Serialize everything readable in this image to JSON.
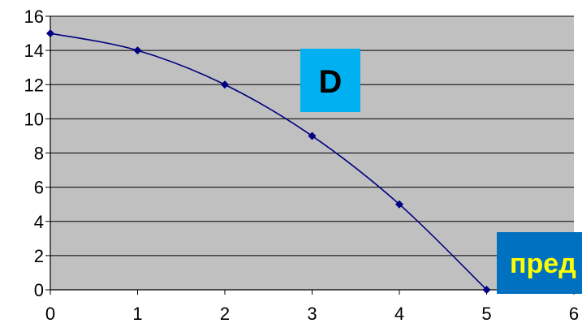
{
  "chart_data": {
    "type": "line",
    "title": "",
    "xlabel": "",
    "ylabel": "",
    "x": [
      0,
      1,
      2,
      3,
      4,
      5
    ],
    "series": [
      {
        "values": [
          15,
          14,
          12,
          9,
          5,
          0
        ]
      }
    ],
    "xlim": [
      0,
      6
    ],
    "ylim": [
      0,
      16
    ],
    "xticks": [
      "0",
      "1",
      "2",
      "3",
      "4",
      "5",
      "6"
    ],
    "yticks": [
      "0",
      "2",
      "4",
      "6",
      "8",
      "10",
      "12",
      "14",
      "16"
    ],
    "grid": true,
    "smoothed": true,
    "colors": {
      "plot_bg": "#c0c0c0",
      "line": "#000080",
      "gridline": "#000000",
      "box_d_bg": "#00b0f0",
      "box_d_text": "#000000",
      "box_label_bg": "#0070c0",
      "box_label_text": "#ffff00"
    },
    "annotations": [
      {
        "id": "box-d",
        "text": "D"
      },
      {
        "id": "box-label",
        "text": "пред"
      }
    ]
  }
}
